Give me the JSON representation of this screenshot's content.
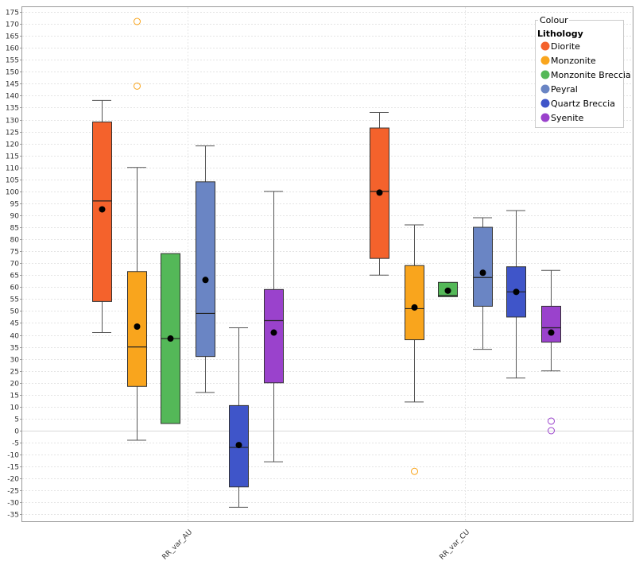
{
  "chart_data": {
    "type": "boxplot",
    "title": "",
    "xlabel": "",
    "ylabel": "",
    "ylim": [
      -38,
      177
    ],
    "y_ticks": [
      -35,
      -30,
      -25,
      -20,
      -15,
      -10,
      -5,
      0,
      5,
      10,
      15,
      20,
      25,
      30,
      35,
      40,
      45,
      50,
      55,
      60,
      65,
      70,
      75,
      80,
      85,
      90,
      95,
      100,
      105,
      110,
      115,
      120,
      125,
      130,
      135,
      140,
      145,
      150,
      155,
      160,
      165,
      170,
      175
    ],
    "grid": true,
    "categories": [
      "RR_var_AU",
      "RR_var_CU"
    ],
    "legend": {
      "placement": "top-right",
      "title": "Colour",
      "heading": "Lithology",
      "entries": [
        {
          "name": "Diorite",
          "color": "#f4622c"
        },
        {
          "name": "Monzonite",
          "color": "#f9a51d"
        },
        {
          "name": "Monzonite Breccia",
          "color": "#54b858"
        },
        {
          "name": "Peyral",
          "color": "#6a85c4"
        },
        {
          "name": "Quartz Breccia",
          "color": "#3f55c9"
        },
        {
          "name": "Syenite",
          "color": "#9a42cc"
        }
      ]
    },
    "series": [
      {
        "name": "Diorite",
        "boxes": [
          {
            "category": "RR_var_AU",
            "whisker_low": 41,
            "q1": 54,
            "median": 96,
            "q3": 129,
            "whisker_high": 138,
            "mean": 92.5,
            "outliers": []
          },
          {
            "category": "RR_var_CU",
            "whisker_low": 65,
            "q1": 72,
            "median": 100,
            "q3": 126.5,
            "whisker_high": 133,
            "mean": 99.5,
            "outliers": []
          }
        ]
      },
      {
        "name": "Monzonite",
        "boxes": [
          {
            "category": "RR_var_AU",
            "whisker_low": -4,
            "q1": 18.5,
            "median": 35,
            "q3": 66.5,
            "whisker_high": 110,
            "mean": 43.5,
            "outliers": [
              144,
              171
            ]
          },
          {
            "category": "RR_var_CU",
            "whisker_low": 12,
            "q1": 38,
            "median": 51,
            "q3": 69,
            "whisker_high": 86,
            "mean": 51.5,
            "outliers": [
              -17
            ]
          }
        ]
      },
      {
        "name": "Monzonite Breccia",
        "boxes": [
          {
            "category": "RR_var_AU",
            "whisker_low": 3,
            "q1": 3,
            "median": 38.5,
            "q3": 74,
            "whisker_high": 74,
            "mean": 38.5,
            "outliers": []
          },
          {
            "category": "RR_var_CU",
            "whisker_low": 56,
            "q1": 56,
            "median": 56.5,
            "q3": 62,
            "whisker_high": 62,
            "mean": 58.5,
            "outliers": []
          }
        ]
      },
      {
        "name": "Peyral",
        "boxes": [
          {
            "category": "RR_var_AU",
            "whisker_low": 16,
            "q1": 31,
            "median": 49,
            "q3": 104,
            "whisker_high": 119,
            "mean": 63,
            "outliers": []
          },
          {
            "category": "RR_var_CU",
            "whisker_low": 34,
            "q1": 52,
            "median": 64,
            "q3": 85,
            "whisker_high": 89,
            "mean": 66,
            "outliers": []
          }
        ]
      },
      {
        "name": "Quartz Breccia",
        "boxes": [
          {
            "category": "RR_var_AU",
            "whisker_low": -32,
            "q1": -23.5,
            "median": -7,
            "q3": 10.5,
            "whisker_high": 43,
            "mean": -6,
            "outliers": []
          },
          {
            "category": "RR_var_CU",
            "whisker_low": 22,
            "q1": 47.5,
            "median": 58,
            "q3": 68.5,
            "whisker_high": 92,
            "mean": 58,
            "outliers": []
          }
        ]
      },
      {
        "name": "Syenite",
        "boxes": [
          {
            "category": "RR_var_AU",
            "whisker_low": -13,
            "q1": 20,
            "median": 46,
            "q3": 59,
            "whisker_high": 100,
            "mean": 41,
            "outliers": []
          },
          {
            "category": "RR_var_CU",
            "whisker_low": 25,
            "q1": 37,
            "median": 43,
            "q3": 52,
            "whisker_high": 67,
            "mean": 41,
            "outliers": [
              4,
              0
            ]
          }
        ]
      }
    ]
  }
}
